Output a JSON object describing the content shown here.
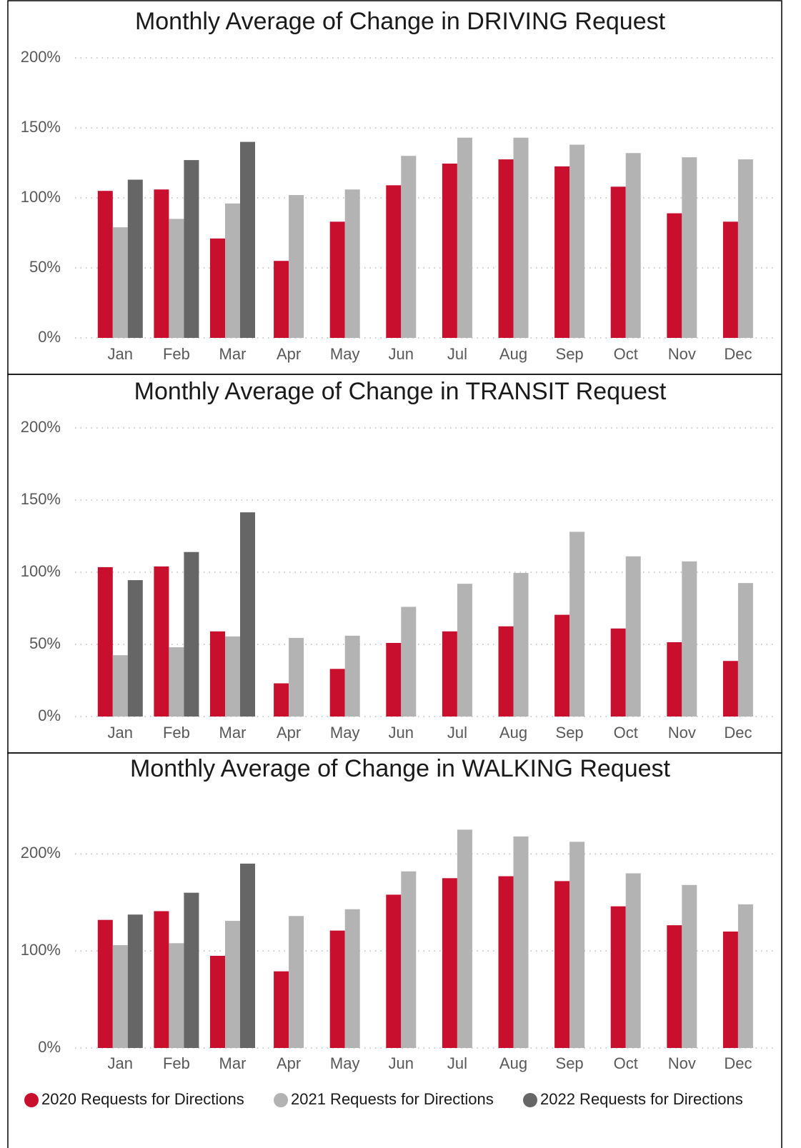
{
  "chart_data": [
    {
      "type": "bar",
      "title": "Monthly Average of Change in DRIVING Request",
      "categories": [
        "Jan",
        "Feb",
        "Mar",
        "Apr",
        "May",
        "Jun",
        "Jul",
        "Aug",
        "Sep",
        "Oct",
        "Nov",
        "Dec"
      ],
      "series": [
        {
          "color": "#c8102e",
          "values": [
            105,
            106,
            71,
            55,
            83,
            109,
            124.5,
            127.5,
            122.5,
            108,
            89,
            83
          ]
        },
        {
          "color": "#b3b3b3",
          "values": [
            79,
            85,
            96,
            102,
            106,
            130,
            143,
            143,
            138,
            132,
            129,
            127.5
          ]
        },
        {
          "color": "#666666",
          "values": [
            113,
            127,
            140,
            null,
            null,
            null,
            null,
            null,
            null,
            null,
            null,
            null
          ]
        }
      ],
      "ylim": [
        0,
        200
      ],
      "yticks": [
        {
          "value": 0,
          "label": "0%"
        },
        {
          "value": 50,
          "label": "50%"
        },
        {
          "value": 100,
          "label": "100%"
        },
        {
          "value": 150,
          "label": "150%"
        },
        {
          "value": 200,
          "label": "200%"
        }
      ],
      "grid": true
    },
    {
      "type": "bar",
      "title": "Monthly Average of Change in TRANSIT Request",
      "categories": [
        "Jan",
        "Feb",
        "Mar",
        "Apr",
        "May",
        "Jun",
        "Jul",
        "Aug",
        "Sep",
        "Oct",
        "Nov",
        "Dec"
      ],
      "series": [
        {
          "color": "#c8102e",
          "values": [
            103.5,
            104,
            59,
            23,
            33,
            51,
            59,
            62.5,
            70.5,
            61,
            51.5,
            38.5
          ]
        },
        {
          "color": "#b3b3b3",
          "values": [
            42.5,
            48,
            55.5,
            54.5,
            56,
            76,
            92,
            99.5,
            128,
            111,
            107.5,
            92.5
          ]
        },
        {
          "color": "#666666",
          "values": [
            94.5,
            114,
            141.5,
            null,
            null,
            null,
            null,
            null,
            null,
            null,
            null,
            null
          ]
        }
      ],
      "ylim": [
        0,
        200
      ],
      "yticks": [
        {
          "value": 0,
          "label": "0%"
        },
        {
          "value": 50,
          "label": "50%"
        },
        {
          "value": 100,
          "label": "100%"
        },
        {
          "value": 150,
          "label": "150%"
        },
        {
          "value": 200,
          "label": "200%"
        }
      ],
      "grid": true
    },
    {
      "type": "bar",
      "title": "Monthly Average of Change in WALKING Request",
      "categories": [
        "Jan",
        "Feb",
        "Mar",
        "Apr",
        "May",
        "Jun",
        "Jul",
        "Aug",
        "Sep",
        "Oct",
        "Nov",
        "Dec"
      ],
      "series": [
        {
          "name": "2020 Requests for Directions",
          "color": "#c8102e",
          "values": [
            132,
            141,
            95,
            79,
            121,
            158,
            175,
            177,
            172,
            146,
            126.5,
            120
          ]
        },
        {
          "name": "2021 Requests for Directions",
          "color": "#b3b3b3",
          "values": [
            106,
            108,
            131,
            136,
            143,
            182,
            225,
            218,
            212.5,
            180,
            168,
            148
          ]
        },
        {
          "name": "2022 Requests for Directions",
          "color": "#666666",
          "values": [
            137.5,
            160,
            190,
            null,
            null,
            null,
            null,
            null,
            null,
            null,
            null,
            null
          ]
        }
      ],
      "ylim": [
        0,
        240
      ],
      "yticks": [
        {
          "value": 0,
          "label": "0%"
        },
        {
          "value": 100,
          "label": "100%"
        },
        {
          "value": 200,
          "label": "200%"
        }
      ],
      "grid": true
    }
  ]
}
